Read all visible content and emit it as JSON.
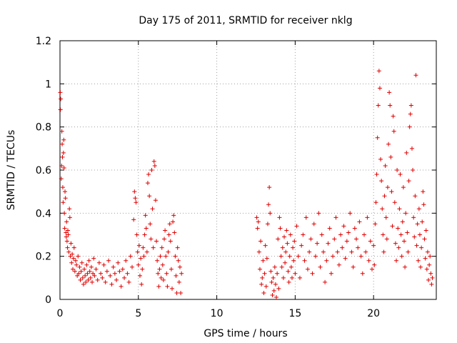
{
  "chart_data": {
    "type": "scatter",
    "title": "Day 175 of 2011, SRMTID for receiver nklg",
    "xlabel": "GPS time / hours",
    "ylabel": "SRMTID / TECUs",
    "xlim": [
      0,
      24
    ],
    "ylim": [
      0,
      1.2
    ],
    "x_ticks": [
      0,
      5,
      10,
      15,
      20
    ],
    "x_tick_labels": [
      "0",
      "5",
      "10",
      "15",
      "20"
    ],
    "y_ticks": [
      0,
      0.2,
      0.4,
      0.6,
      0.8,
      1.0,
      1.2
    ],
    "y_tick_labels": [
      "0",
      "0.2",
      "0.4",
      "0.6",
      "0.8",
      "1",
      "1.2"
    ],
    "grid": true,
    "marker": "+",
    "color": "#e00000",
    "series": [
      {
        "name": "SRMTID",
        "points": [
          [
            0.02,
            0.96
          ],
          [
            0.03,
            0.88
          ],
          [
            0.05,
            0.93
          ],
          [
            0.08,
            0.56
          ],
          [
            0.1,
            0.62
          ],
          [
            0.12,
            0.78
          ],
          [
            0.14,
            0.72
          ],
          [
            0.16,
            0.66
          ],
          [
            0.18,
            0.52
          ],
          [
            0.2,
            0.45
          ],
          [
            0.22,
            0.68
          ],
          [
            0.24,
            0.74
          ],
          [
            0.26,
            0.61
          ],
          [
            0.28,
            0.4
          ],
          [
            0.3,
            0.33
          ],
          [
            0.32,
            0.5
          ],
          [
            0.35,
            0.47
          ],
          [
            0.38,
            0.31
          ],
          [
            0.4,
            0.29
          ],
          [
            0.42,
            0.36
          ],
          [
            0.45,
            0.27
          ],
          [
            0.48,
            0.24
          ],
          [
            0.5,
            0.32
          ],
          [
            0.53,
            0.3
          ],
          [
            0.56,
            0.22
          ],
          [
            0.6,
            0.42
          ],
          [
            0.63,
            0.38
          ],
          [
            0.66,
            0.2
          ],
          [
            0.7,
            0.26
          ],
          [
            0.74,
            0.17
          ],
          [
            0.78,
            0.21
          ],
          [
            0.82,
            0.14
          ],
          [
            0.86,
            0.19
          ],
          [
            0.9,
            0.24
          ],
          [
            0.95,
            0.13
          ],
          [
            1.0,
            0.18
          ],
          [
            1.05,
            0.16
          ],
          [
            1.1,
            0.11
          ],
          [
            1.15,
            0.2
          ],
          [
            1.2,
            0.12
          ],
          [
            1.25,
            0.15
          ],
          [
            1.3,
            0.09
          ],
          [
            1.35,
            0.13
          ],
          [
            1.4,
            0.17
          ],
          [
            1.45,
            0.1
          ],
          [
            1.5,
            0.07
          ],
          [
            1.55,
            0.14
          ],
          [
            1.6,
            0.11
          ],
          [
            1.65,
            0.08
          ],
          [
            1.7,
            0.16
          ],
          [
            1.75,
            0.12
          ],
          [
            1.8,
            0.09
          ],
          [
            1.85,
            0.18
          ],
          [
            1.9,
            0.13
          ],
          [
            1.95,
            0.1
          ],
          [
            2.0,
            0.15
          ],
          [
            2.05,
            0.08
          ],
          [
            2.1,
            0.12
          ],
          [
            2.15,
            0.19
          ],
          [
            2.2,
            0.11
          ],
          [
            2.3,
            0.14
          ],
          [
            2.4,
            0.09
          ],
          [
            2.5,
            0.17
          ],
          [
            2.6,
            0.12
          ],
          [
            2.7,
            0.1
          ],
          [
            2.8,
            0.16
          ],
          [
            2.9,
            0.08
          ],
          [
            3.0,
            0.13
          ],
          [
            3.1,
            0.18
          ],
          [
            3.2,
            0.11
          ],
          [
            3.3,
            0.07
          ],
          [
            3.4,
            0.15
          ],
          [
            3.5,
            0.12
          ],
          [
            3.6,
            0.09
          ],
          [
            3.7,
            0.17
          ],
          [
            3.8,
            0.13
          ],
          [
            3.9,
            0.06
          ],
          [
            4.0,
            0.14
          ],
          [
            4.1,
            0.1
          ],
          [
            4.2,
            0.18
          ],
          [
            4.3,
            0.12
          ],
          [
            4.4,
            0.08
          ],
          [
            4.5,
            0.2
          ],
          [
            4.6,
            0.15
          ],
          [
            4.7,
            0.37
          ],
          [
            4.75,
            0.5
          ],
          [
            4.8,
            0.47
          ],
          [
            4.85,
            0.45
          ],
          [
            4.9,
            0.3
          ],
          [
            4.95,
            0.22
          ],
          [
            5.0,
            0.16
          ],
          [
            5.05,
            0.25
          ],
          [
            5.1,
            0.11
          ],
          [
            5.15,
            0.19
          ],
          [
            5.2,
            0.07
          ],
          [
            5.25,
            0.14
          ],
          [
            5.3,
            0.24
          ],
          [
            5.35,
            0.2
          ],
          [
            5.4,
            0.3
          ],
          [
            5.45,
            0.39
          ],
          [
            5.5,
            0.33
          ],
          [
            5.55,
            0.22
          ],
          [
            5.6,
            0.54
          ],
          [
            5.65,
            0.58
          ],
          [
            5.7,
            0.48
          ],
          [
            5.75,
            0.35
          ],
          [
            5.8,
            0.28
          ],
          [
            5.85,
            0.6
          ],
          [
            5.9,
            0.42
          ],
          [
            5.95,
            0.24
          ],
          [
            6.0,
            0.64
          ],
          [
            6.05,
            0.62
          ],
          [
            6.1,
            0.46
          ],
          [
            6.15,
            0.27
          ],
          [
            6.2,
            0.18
          ],
          [
            6.25,
            0.12
          ],
          [
            6.3,
            0.06
          ],
          [
            6.35,
            0.14
          ],
          [
            6.4,
            0.2
          ],
          [
            6.45,
            0.1
          ],
          [
            6.5,
            0.24
          ],
          [
            6.55,
            0.16
          ],
          [
            6.6,
            0.09
          ],
          [
            6.65,
            0.28
          ],
          [
            6.7,
            0.32
          ],
          [
            6.75,
            0.2
          ],
          [
            6.8,
            0.12
          ],
          [
            6.85,
            0.06
          ],
          [
            6.9,
            0.22
          ],
          [
            6.95,
            0.3
          ],
          [
            7.0,
            0.35
          ],
          [
            7.05,
            0.27
          ],
          [
            7.1,
            0.14
          ],
          [
            7.15,
            0.05
          ],
          [
            7.2,
            0.36
          ],
          [
            7.25,
            0.39
          ],
          [
            7.3,
            0.31
          ],
          [
            7.35,
            0.2
          ],
          [
            7.4,
            0.11
          ],
          [
            7.45,
            0.03
          ],
          [
            7.5,
            0.24
          ],
          [
            7.55,
            0.18
          ],
          [
            7.6,
            0.08
          ],
          [
            7.65,
            0.15
          ],
          [
            7.7,
            0.03
          ],
          [
            7.75,
            0.12
          ],
          [
            12.55,
            0.38
          ],
          [
            12.6,
            0.33
          ],
          [
            12.65,
            0.36
          ],
          [
            12.7,
            0.22
          ],
          [
            12.75,
            0.14
          ],
          [
            12.8,
            0.27
          ],
          [
            12.85,
            0.07
          ],
          [
            12.9,
            0.1
          ],
          [
            12.95,
            0.18
          ],
          [
            13.0,
            0.03
          ],
          [
            13.05,
            0.12
          ],
          [
            13.1,
            0.25
          ],
          [
            13.15,
            0.06
          ],
          [
            13.2,
            0.19
          ],
          [
            13.25,
            0.35
          ],
          [
            13.3,
            0.44
          ],
          [
            13.35,
            0.52
          ],
          [
            13.4,
            0.4
          ],
          [
            13.45,
            0.13
          ],
          [
            13.5,
            0.08
          ],
          [
            13.55,
            0.02
          ],
          [
            13.6,
            0.1
          ],
          [
            13.65,
            0.04
          ],
          [
            13.7,
            0.15
          ],
          [
            13.75,
            0.07
          ],
          [
            13.8,
            0.01
          ],
          [
            13.85,
            0.12
          ],
          [
            13.9,
            0.28
          ],
          [
            13.95,
            0.05
          ],
          [
            14.0,
            0.38
          ],
          [
            14.05,
            0.33
          ],
          [
            14.1,
            0.2
          ],
          [
            14.15,
            0.15
          ],
          [
            14.2,
            0.24
          ],
          [
            14.25,
            0.1
          ],
          [
            14.3,
            0.29
          ],
          [
            14.35,
            0.17
          ],
          [
            14.4,
            0.22
          ],
          [
            14.45,
            0.32
          ],
          [
            14.5,
            0.26
          ],
          [
            14.55,
            0.13
          ],
          [
            14.6,
            0.08
          ],
          [
            14.65,
            0.2
          ],
          [
            14.7,
            0.3
          ],
          [
            14.75,
            0.15
          ],
          [
            14.8,
            0.1
          ],
          [
            14.85,
            0.24
          ],
          [
            14.9,
            0.18
          ],
          [
            14.95,
            0.27
          ],
          [
            15.0,
            0.12
          ],
          [
            15.1,
            0.34
          ],
          [
            15.2,
            0.2
          ],
          [
            15.3,
            0.1
          ],
          [
            15.4,
            0.25
          ],
          [
            15.5,
            0.3
          ],
          [
            15.6,
            0.18
          ],
          [
            15.7,
            0.38
          ],
          [
            15.8,
            0.14
          ],
          [
            15.9,
            0.22
          ],
          [
            16.0,
            0.28
          ],
          [
            16.1,
            0.12
          ],
          [
            16.2,
            0.35
          ],
          [
            16.3,
            0.2
          ],
          [
            16.4,
            0.26
          ],
          [
            16.5,
            0.4
          ],
          [
            16.6,
            0.15
          ],
          [
            16.7,
            0.3
          ],
          [
            16.8,
            0.22
          ],
          [
            16.9,
            0.08
          ],
          [
            17.0,
            0.18
          ],
          [
            17.1,
            0.26
          ],
          [
            17.2,
            0.33
          ],
          [
            17.3,
            0.12
          ],
          [
            17.4,
            0.2
          ],
          [
            17.5,
            0.28
          ],
          [
            17.6,
            0.38
          ],
          [
            17.7,
            0.22
          ],
          [
            17.8,
            0.16
          ],
          [
            17.9,
            0.3
          ],
          [
            18.0,
            0.24
          ],
          [
            18.1,
            0.34
          ],
          [
            18.2,
            0.19
          ],
          [
            18.3,
            0.27
          ],
          [
            18.4,
            0.31
          ],
          [
            18.5,
            0.4
          ],
          [
            18.6,
            0.22
          ],
          [
            18.7,
            0.15
          ],
          [
            18.8,
            0.33
          ],
          [
            18.9,
            0.28
          ],
          [
            19.0,
            0.24
          ],
          [
            19.1,
            0.36
          ],
          [
            19.2,
            0.2
          ],
          [
            19.3,
            0.12
          ],
          [
            19.4,
            0.3
          ],
          [
            19.5,
            0.22
          ],
          [
            19.6,
            0.38
          ],
          [
            19.7,
            0.18
          ],
          [
            19.8,
            0.27
          ],
          [
            19.9,
            0.14
          ],
          [
            20.0,
            0.25
          ],
          [
            20.05,
            0.16
          ],
          [
            20.1,
            0.35
          ],
          [
            20.15,
            0.45
          ],
          [
            20.2,
            0.58
          ],
          [
            20.25,
            0.75
          ],
          [
            20.3,
            0.9
          ],
          [
            20.35,
            1.06
          ],
          [
            20.4,
            0.98
          ],
          [
            20.45,
            0.65
          ],
          [
            20.5,
            0.55
          ],
          [
            20.55,
            0.42
          ],
          [
            20.6,
            0.3
          ],
          [
            20.65,
            0.22
          ],
          [
            20.7,
            0.48
          ],
          [
            20.75,
            0.62
          ],
          [
            20.8,
            0.38
          ],
          [
            20.85,
            0.28
          ],
          [
            20.9,
            0.52
          ],
          [
            20.95,
            0.72
          ],
          [
            21.0,
            0.96
          ],
          [
            21.05,
            0.9
          ],
          [
            21.1,
            0.66
          ],
          [
            21.15,
            0.5
          ],
          [
            21.2,
            0.34
          ],
          [
            21.25,
            0.85
          ],
          [
            21.3,
            0.78
          ],
          [
            21.35,
            0.45
          ],
          [
            21.4,
            0.26
          ],
          [
            21.45,
            0.18
          ],
          [
            21.5,
            0.6
          ],
          [
            21.55,
            0.33
          ],
          [
            21.6,
            0.24
          ],
          [
            21.65,
            0.42
          ],
          [
            21.7,
            0.58
          ],
          [
            21.75,
            0.3
          ],
          [
            21.8,
            0.2
          ],
          [
            21.85,
            0.36
          ],
          [
            21.9,
            0.52
          ],
          [
            21.95,
            0.27
          ],
          [
            22.0,
            0.15
          ],
          [
            22.05,
            0.4
          ],
          [
            22.1,
            0.68
          ],
          [
            22.15,
            0.31
          ],
          [
            22.2,
            0.22
          ],
          [
            22.25,
            0.55
          ],
          [
            22.3,
            0.8
          ],
          [
            22.35,
            0.86
          ],
          [
            22.4,
            0.9
          ],
          [
            22.45,
            0.7
          ],
          [
            22.5,
            0.6
          ],
          [
            22.55,
            0.38
          ],
          [
            22.6,
            0.29
          ],
          [
            22.65,
            0.48
          ],
          [
            22.7,
            1.04
          ],
          [
            22.75,
            0.25
          ],
          [
            22.8,
            0.35
          ],
          [
            22.85,
            0.18
          ],
          [
            22.9,
            0.42
          ],
          [
            22.95,
            0.3
          ],
          [
            23.0,
            0.15
          ],
          [
            23.05,
            0.24
          ],
          [
            23.1,
            0.36
          ],
          [
            23.15,
            0.5
          ],
          [
            23.2,
            0.44
          ],
          [
            23.25,
            0.28
          ],
          [
            23.3,
            0.19
          ],
          [
            23.35,
            0.32
          ],
          [
            23.4,
            0.14
          ],
          [
            23.45,
            0.22
          ],
          [
            23.5,
            0.09
          ],
          [
            23.55,
            0.16
          ],
          [
            23.6,
            0.2
          ],
          [
            23.65,
            0.12
          ],
          [
            23.7,
            0.07
          ],
          [
            23.75,
            0.1
          ]
        ]
      }
    ]
  }
}
